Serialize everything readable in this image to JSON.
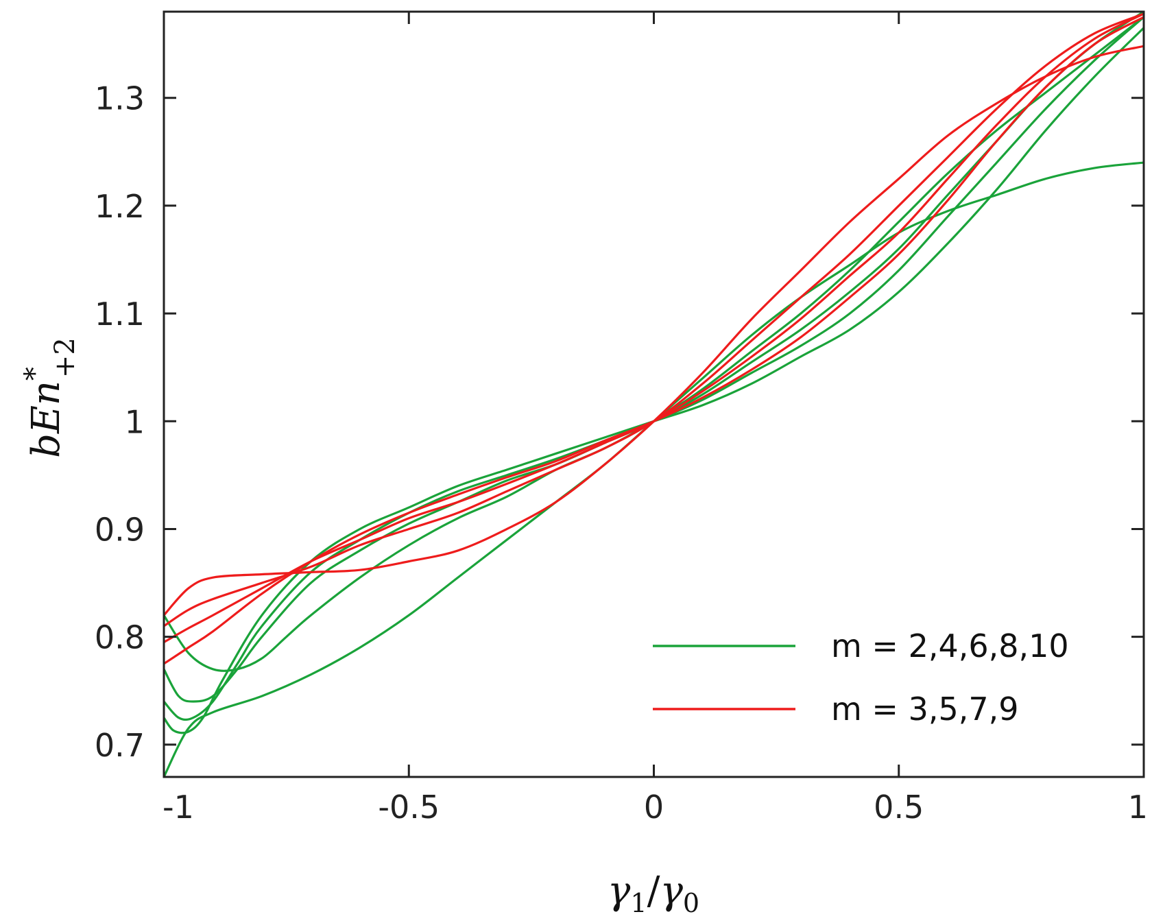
{
  "chart_data": {
    "type": "line",
    "title": "",
    "xlabel": "γ1/γ0",
    "ylabel": "bEn*+2",
    "xlabel_parts": {
      "main": "γ",
      "sub1": "1",
      "slash": "/",
      "main2": "γ",
      "sub2": "0"
    },
    "ylabel_parts": {
      "main": "bEn",
      "sup": "*",
      "sub": "+2"
    },
    "xlim": [
      -1,
      1
    ],
    "ylim": [
      0.67,
      1.38
    ],
    "xticks": [
      {
        "value": -1,
        "label": "-1"
      },
      {
        "value": -0.5,
        "label": "-0.5"
      },
      {
        "value": 0,
        "label": "0"
      },
      {
        "value": 0.5,
        "label": "0.5"
      },
      {
        "value": 1,
        "label": "1"
      }
    ],
    "yticks": [
      {
        "value": 0.7,
        "label": "0.7"
      },
      {
        "value": 0.8,
        "label": "0.8"
      },
      {
        "value": 0.9,
        "label": "0.9"
      },
      {
        "value": 1.0,
        "label": "1"
      },
      {
        "value": 1.1,
        "label": "1.1"
      },
      {
        "value": 1.2,
        "label": "1.2"
      },
      {
        "value": 1.3,
        "label": "1.3"
      }
    ],
    "grid": false,
    "legend": {
      "position": "bottom-right",
      "entries": [
        {
          "label": "m = 2,4,6,8,10",
          "color": "#1aa33a"
        },
        {
          "label": "m = 3,5,7,9",
          "color": "#ee1c1c"
        }
      ]
    },
    "series": [
      {
        "name": "m=2",
        "group": "m = 2,4,6,8,10",
        "color": "#1aa33a",
        "x": [
          -1,
          -0.95,
          -0.9,
          -0.8,
          -0.7,
          -0.6,
          -0.5,
          -0.4,
          -0.3,
          -0.2,
          -0.1,
          0,
          0.1,
          0.2,
          0.3,
          0.4,
          0.5,
          0.6,
          0.7,
          0.8,
          0.9,
          1
        ],
        "y": [
          0.67,
          0.715,
          0.73,
          0.745,
          0.765,
          0.79,
          0.82,
          0.855,
          0.89,
          0.925,
          0.96,
          1.0,
          1.04,
          1.08,
          1.115,
          1.145,
          1.175,
          1.195,
          1.21,
          1.225,
          1.235,
          1.24
        ]
      },
      {
        "name": "m=4",
        "group": "m = 2,4,6,8,10",
        "color": "#1aa33a",
        "x": [
          -1,
          -0.95,
          -0.9,
          -0.85,
          -0.8,
          -0.75,
          -0.7,
          -0.6,
          -0.5,
          -0.4,
          -0.3,
          -0.2,
          -0.1,
          0,
          0.1,
          0.2,
          0.3,
          0.4,
          0.5,
          0.6,
          0.7,
          0.8,
          0.9,
          1
        ],
        "y": [
          0.82,
          0.785,
          0.77,
          0.77,
          0.78,
          0.8,
          0.82,
          0.855,
          0.885,
          0.91,
          0.93,
          0.955,
          0.975,
          1.0,
          1.03,
          1.065,
          1.1,
          1.14,
          1.185,
          1.23,
          1.27,
          1.305,
          1.34,
          1.375
        ]
      },
      {
        "name": "m=6",
        "group": "m = 2,4,6,8,10",
        "color": "#1aa33a",
        "x": [
          -1,
          -0.97,
          -0.94,
          -0.9,
          -0.85,
          -0.8,
          -0.7,
          -0.6,
          -0.5,
          -0.4,
          -0.3,
          -0.2,
          -0.1,
          0,
          0.1,
          0.2,
          0.3,
          0.4,
          0.5,
          0.6,
          0.7,
          0.8,
          0.9,
          1
        ],
        "y": [
          0.77,
          0.745,
          0.74,
          0.745,
          0.77,
          0.8,
          0.85,
          0.88,
          0.905,
          0.925,
          0.945,
          0.96,
          0.98,
          1.0,
          1.025,
          1.055,
          1.085,
          1.12,
          1.16,
          1.21,
          1.26,
          1.31,
          1.35,
          1.38
        ]
      },
      {
        "name": "m=8",
        "group": "m = 2,4,6,8,10",
        "color": "#1aa33a",
        "x": [
          -1,
          -0.97,
          -0.94,
          -0.9,
          -0.85,
          -0.8,
          -0.7,
          -0.6,
          -0.5,
          -0.4,
          -0.3,
          -0.2,
          -0.1,
          0,
          0.1,
          0.2,
          0.3,
          0.4,
          0.5,
          0.6,
          0.7,
          0.8,
          0.9,
          1
        ],
        "y": [
          0.74,
          0.725,
          0.725,
          0.74,
          0.775,
          0.81,
          0.86,
          0.89,
          0.915,
          0.935,
          0.95,
          0.965,
          0.982,
          1.0,
          1.02,
          1.045,
          1.07,
          1.1,
          1.14,
          1.19,
          1.24,
          1.29,
          1.335,
          1.375
        ]
      },
      {
        "name": "m=10",
        "group": "m = 2,4,6,8,10",
        "color": "#1aa33a",
        "x": [
          -1,
          -0.98,
          -0.95,
          -0.92,
          -0.88,
          -0.8,
          -0.7,
          -0.6,
          -0.5,
          -0.4,
          -0.3,
          -0.2,
          -0.1,
          0,
          0.1,
          0.2,
          0.3,
          0.4,
          0.5,
          0.6,
          0.7,
          0.8,
          0.9,
          1
        ],
        "y": [
          0.725,
          0.713,
          0.712,
          0.725,
          0.76,
          0.82,
          0.87,
          0.9,
          0.92,
          0.94,
          0.955,
          0.97,
          0.985,
          1.0,
          1.015,
          1.035,
          1.06,
          1.085,
          1.12,
          1.165,
          1.215,
          1.27,
          1.32,
          1.365
        ]
      },
      {
        "name": "m=3",
        "group": "m = 3,5,7,9",
        "color": "#ee1c1c",
        "x": [
          -1,
          -0.95,
          -0.9,
          -0.8,
          -0.7,
          -0.6,
          -0.5,
          -0.4,
          -0.3,
          -0.2,
          -0.1,
          0,
          0.1,
          0.2,
          0.3,
          0.4,
          0.5,
          0.6,
          0.7,
          0.8,
          0.9,
          1
        ],
        "y": [
          0.82,
          0.845,
          0.855,
          0.858,
          0.86,
          0.862,
          0.87,
          0.88,
          0.9,
          0.925,
          0.96,
          1.0,
          1.045,
          1.095,
          1.14,
          1.185,
          1.225,
          1.265,
          1.295,
          1.32,
          1.338,
          1.348
        ]
      },
      {
        "name": "m=5",
        "group": "m = 3,5,7,9",
        "color": "#ee1c1c",
        "x": [
          -1,
          -0.95,
          -0.9,
          -0.8,
          -0.7,
          -0.6,
          -0.5,
          -0.4,
          -0.3,
          -0.2,
          -0.1,
          0,
          0.1,
          0.2,
          0.3,
          0.4,
          0.5,
          0.6,
          0.7,
          0.8,
          0.9,
          1
        ],
        "y": [
          0.81,
          0.825,
          0.835,
          0.85,
          0.865,
          0.885,
          0.9,
          0.915,
          0.935,
          0.955,
          0.975,
          1.0,
          1.035,
          1.075,
          1.115,
          1.155,
          1.2,
          1.245,
          1.29,
          1.33,
          1.36,
          1.378
        ]
      },
      {
        "name": "m=7",
        "group": "m = 3,5,7,9",
        "color": "#ee1c1c",
        "x": [
          -1,
          -0.95,
          -0.9,
          -0.8,
          -0.7,
          -0.6,
          -0.5,
          -0.4,
          -0.3,
          -0.2,
          -0.1,
          0,
          0.1,
          0.2,
          0.3,
          0.4,
          0.5,
          0.6,
          0.7,
          0.8,
          0.9,
          1
        ],
        "y": [
          0.795,
          0.808,
          0.82,
          0.845,
          0.87,
          0.89,
          0.91,
          0.925,
          0.942,
          0.96,
          0.98,
          1.0,
          1.028,
          1.06,
          1.095,
          1.135,
          1.175,
          1.225,
          1.275,
          1.32,
          1.355,
          1.378
        ]
      },
      {
        "name": "m=9",
        "group": "m = 3,5,7,9",
        "color": "#ee1c1c",
        "x": [
          -1,
          -0.95,
          -0.9,
          -0.8,
          -0.7,
          -0.6,
          -0.5,
          -0.4,
          -0.3,
          -0.2,
          -0.1,
          0,
          0.1,
          0.2,
          0.3,
          0.4,
          0.5,
          0.6,
          0.7,
          0.8,
          0.9,
          1
        ],
        "y": [
          0.775,
          0.79,
          0.805,
          0.84,
          0.87,
          0.895,
          0.915,
          0.932,
          0.948,
          0.963,
          0.982,
          1.0,
          1.022,
          1.048,
          1.078,
          1.115,
          1.155,
          1.205,
          1.26,
          1.31,
          1.35,
          1.375
        ]
      }
    ]
  }
}
